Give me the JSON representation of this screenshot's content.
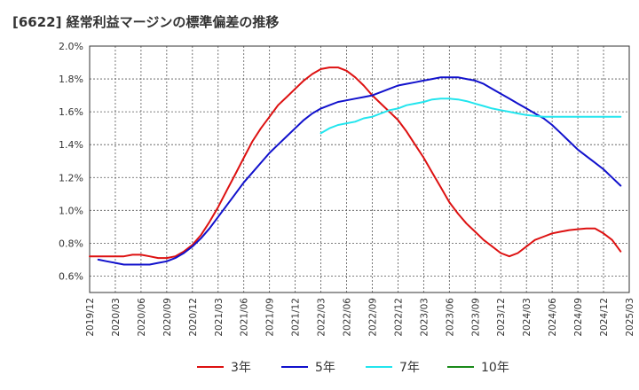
{
  "chart_data": {
    "type": "line",
    "title": "[6622]  経常利益マージンの標準偏差の推移",
    "ylim": [
      0.5,
      2.0
    ],
    "yticks": [
      0.6,
      0.8,
      1.0,
      1.2,
      1.4,
      1.6,
      1.8,
      2.0
    ],
    "ytick_labels": [
      "0.6%",
      "0.8%",
      "1.0%",
      "1.2%",
      "1.4%",
      "1.6%",
      "1.8%",
      "2.0%"
    ],
    "x_labels": [
      "2019/12",
      "2020/03",
      "2020/06",
      "2020/09",
      "2020/12",
      "2021/03",
      "2021/06",
      "2021/09",
      "2021/12",
      "2022/03",
      "2022/06",
      "2022/09",
      "2022/12",
      "2023/03",
      "2023/06",
      "2023/09",
      "2023/12",
      "2024/03",
      "2024/06",
      "2024/09",
      "2024/12",
      "2025/03"
    ],
    "grid": true,
    "legend_position": "bottom",
    "series": [
      {
        "name": "3年",
        "color": "#dd1111",
        "start_index": 0,
        "values": [
          0.72,
          0.72,
          0.72,
          0.72,
          0.72,
          0.73,
          0.73,
          0.72,
          0.71,
          0.71,
          0.72,
          0.75,
          0.79,
          0.85,
          0.93,
          1.02,
          1.12,
          1.22,
          1.32,
          1.42,
          1.5,
          1.57,
          1.64,
          1.69,
          1.74,
          1.79,
          1.83,
          1.86,
          1.87,
          1.87,
          1.85,
          1.81,
          1.76,
          1.7,
          1.65,
          1.6,
          1.55,
          1.48,
          1.4,
          1.32,
          1.23,
          1.14,
          1.05,
          0.98,
          0.92,
          0.87,
          0.82,
          0.78,
          0.74,
          0.72,
          0.74,
          0.78,
          0.82,
          0.84,
          0.86,
          0.87,
          0.88,
          0.885,
          0.89,
          0.89,
          0.86,
          0.82,
          0.75
        ]
      },
      {
        "name": "5年",
        "color": "#1111cc",
        "start_index": 1,
        "values": [
          0.7,
          0.69,
          0.68,
          0.67,
          0.67,
          0.67,
          0.67,
          0.68,
          0.69,
          0.71,
          0.74,
          0.78,
          0.83,
          0.89,
          0.96,
          1.03,
          1.1,
          1.17,
          1.23,
          1.29,
          1.35,
          1.4,
          1.45,
          1.5,
          1.55,
          1.59,
          1.62,
          1.64,
          1.66,
          1.67,
          1.68,
          1.69,
          1.7,
          1.72,
          1.74,
          1.76,
          1.77,
          1.78,
          1.79,
          1.8,
          1.81,
          1.81,
          1.81,
          1.8,
          1.79,
          1.77,
          1.74,
          1.71,
          1.68,
          1.65,
          1.62,
          1.59,
          1.56,
          1.52,
          1.47,
          1.42,
          1.37,
          1.33,
          1.29,
          1.25,
          1.2,
          1.15
        ]
      },
      {
        "name": "7年",
        "color": "#22e5ee",
        "start_index": 27,
        "values": [
          1.47,
          1.5,
          1.52,
          1.53,
          1.54,
          1.56,
          1.57,
          1.59,
          1.61,
          1.62,
          1.64,
          1.65,
          1.66,
          1.675,
          1.68,
          1.68,
          1.675,
          1.665,
          1.65,
          1.635,
          1.62,
          1.61,
          1.6,
          1.59,
          1.58,
          1.575,
          1.57,
          1.57,
          1.57,
          1.57,
          1.57,
          1.57,
          1.57,
          1.57,
          1.57,
          1.57
        ]
      },
      {
        "name": "10年",
        "color": "#1a8a1a",
        "start_index": 0,
        "values": []
      }
    ]
  }
}
